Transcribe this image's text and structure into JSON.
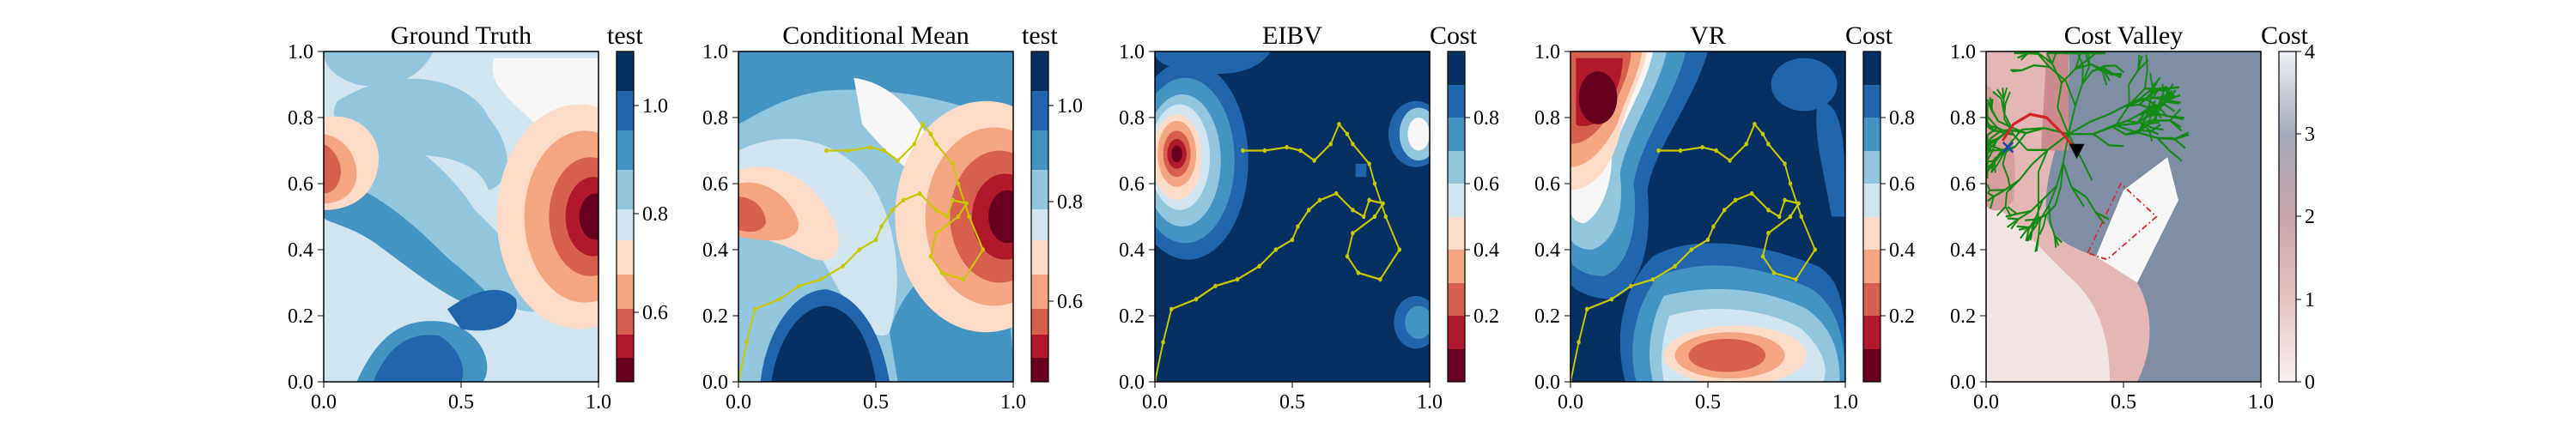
{
  "colors": {
    "dark_red": "#67001f",
    "red": "#b2182b",
    "salmon": "#d6604d",
    "light_salmon": "#f4a582",
    "peach": "#fddbc7",
    "near_white": "#f7f7f7",
    "pale_blue": "#d1e5f0",
    "light_blue": "#92c5de",
    "mid_blue": "#4393c3",
    "blue": "#2166ac",
    "dark_blue": "#053061",
    "path_yellow": "#c8c800",
    "tree_green": "#138a13",
    "route_red": "#d62728",
    "cost_low": "#f3e4e4",
    "cost_mid": "#ddaaaa",
    "cost_high": "#7f8ea4"
  },
  "chart_data": [
    {
      "type": "heatmap",
      "title": "Ground Truth",
      "colorbar_label": "test",
      "colorbar_ticks": [
        "0.6",
        "0.8",
        "1.0"
      ],
      "xlim": [
        0,
        1
      ],
      "ylim": [
        0,
        1
      ],
      "xticks": [
        "0.0",
        "0.5",
        "1.0"
      ],
      "yticks": [
        "0.0",
        "0.2",
        "0.4",
        "0.6",
        "0.8",
        "1.0"
      ]
    },
    {
      "type": "heatmap",
      "title": "Conditional Mean",
      "colorbar_label": "test",
      "colorbar_ticks": [
        "0.6",
        "0.8",
        "1.0"
      ],
      "xlim": [
        0,
        1
      ],
      "ylim": [
        0,
        1
      ],
      "xticks": [
        "0.0",
        "0.5",
        "1.0"
      ],
      "yticks": [
        "0.0",
        "0.2",
        "0.4",
        "0.6",
        "0.8",
        "1.0"
      ],
      "path": [
        [
          0.0,
          0.0
        ],
        [
          0.03,
          0.12
        ],
        [
          0.06,
          0.22
        ],
        [
          0.15,
          0.25
        ],
        [
          0.22,
          0.29
        ],
        [
          0.3,
          0.31
        ],
        [
          0.38,
          0.35
        ],
        [
          0.44,
          0.4
        ],
        [
          0.5,
          0.43
        ],
        [
          0.52,
          0.47
        ],
        [
          0.56,
          0.52
        ],
        [
          0.6,
          0.55
        ],
        [
          0.66,
          0.57
        ],
        [
          0.72,
          0.52
        ],
        [
          0.76,
          0.5
        ],
        [
          0.78,
          0.55
        ],
        [
          0.83,
          0.54
        ],
        [
          0.8,
          0.5
        ],
        [
          0.72,
          0.45
        ],
        [
          0.7,
          0.38
        ],
        [
          0.74,
          0.33
        ],
        [
          0.82,
          0.31
        ],
        [
          0.89,
          0.4
        ],
        [
          0.84,
          0.5
        ],
        [
          0.8,
          0.6
        ],
        [
          0.78,
          0.66
        ],
        [
          0.72,
          0.72
        ],
        [
          0.7,
          0.75
        ],
        [
          0.67,
          0.78
        ],
        [
          0.64,
          0.72
        ],
        [
          0.58,
          0.67
        ],
        [
          0.53,
          0.7
        ],
        [
          0.48,
          0.71
        ],
        [
          0.4,
          0.7
        ],
        [
          0.32,
          0.7
        ]
      ]
    },
    {
      "type": "heatmap",
      "title": "EIBV",
      "colorbar_label": "Cost",
      "colorbar_ticks": [
        "0.2",
        "0.4",
        "0.6",
        "0.8"
      ],
      "xlim": [
        0,
        1
      ],
      "ylim": [
        0,
        1
      ],
      "xticks": [
        "0.0",
        "0.5",
        "1.0"
      ],
      "yticks": [
        "0.0",
        "0.2",
        "0.4",
        "0.6",
        "0.8",
        "1.0"
      ],
      "path": [
        [
          0.0,
          0.0
        ],
        [
          0.03,
          0.12
        ],
        [
          0.06,
          0.22
        ],
        [
          0.15,
          0.25
        ],
        [
          0.22,
          0.29
        ],
        [
          0.3,
          0.31
        ],
        [
          0.38,
          0.35
        ],
        [
          0.44,
          0.4
        ],
        [
          0.5,
          0.43
        ],
        [
          0.52,
          0.47
        ],
        [
          0.56,
          0.52
        ],
        [
          0.6,
          0.55
        ],
        [
          0.66,
          0.57
        ],
        [
          0.72,
          0.52
        ],
        [
          0.76,
          0.5
        ],
        [
          0.78,
          0.55
        ],
        [
          0.83,
          0.54
        ],
        [
          0.8,
          0.5
        ],
        [
          0.72,
          0.45
        ],
        [
          0.7,
          0.38
        ],
        [
          0.74,
          0.33
        ],
        [
          0.82,
          0.31
        ],
        [
          0.89,
          0.4
        ],
        [
          0.84,
          0.5
        ],
        [
          0.8,
          0.6
        ],
        [
          0.78,
          0.66
        ],
        [
          0.72,
          0.72
        ],
        [
          0.7,
          0.75
        ],
        [
          0.67,
          0.78
        ],
        [
          0.64,
          0.72
        ],
        [
          0.58,
          0.67
        ],
        [
          0.53,
          0.7
        ],
        [
          0.48,
          0.71
        ],
        [
          0.4,
          0.7
        ],
        [
          0.32,
          0.7
        ]
      ]
    },
    {
      "type": "heatmap",
      "title": "VR",
      "colorbar_label": "Cost",
      "colorbar_ticks": [
        "0.2",
        "0.4",
        "0.6",
        "0.8"
      ],
      "xlim": [
        0,
        1
      ],
      "ylim": [
        0,
        1
      ],
      "xticks": [
        "0.0",
        "0.5",
        "1.0"
      ],
      "yticks": [
        "0.0",
        "0.2",
        "0.4",
        "0.6",
        "0.8",
        "1.0"
      ],
      "path": [
        [
          0.0,
          0.0
        ],
        [
          0.03,
          0.12
        ],
        [
          0.06,
          0.22
        ],
        [
          0.15,
          0.25
        ],
        [
          0.22,
          0.29
        ],
        [
          0.3,
          0.31
        ],
        [
          0.38,
          0.35
        ],
        [
          0.44,
          0.4
        ],
        [
          0.5,
          0.43
        ],
        [
          0.52,
          0.47
        ],
        [
          0.56,
          0.52
        ],
        [
          0.6,
          0.55
        ],
        [
          0.66,
          0.57
        ],
        [
          0.72,
          0.52
        ],
        [
          0.76,
          0.5
        ],
        [
          0.78,
          0.55
        ],
        [
          0.83,
          0.54
        ],
        [
          0.8,
          0.5
        ],
        [
          0.72,
          0.45
        ],
        [
          0.7,
          0.38
        ],
        [
          0.74,
          0.33
        ],
        [
          0.82,
          0.31
        ],
        [
          0.89,
          0.4
        ],
        [
          0.84,
          0.5
        ],
        [
          0.8,
          0.6
        ],
        [
          0.78,
          0.66
        ],
        [
          0.72,
          0.72
        ],
        [
          0.7,
          0.75
        ],
        [
          0.67,
          0.78
        ],
        [
          0.64,
          0.72
        ],
        [
          0.58,
          0.67
        ],
        [
          0.53,
          0.7
        ],
        [
          0.48,
          0.71
        ],
        [
          0.4,
          0.7
        ],
        [
          0.32,
          0.7
        ]
      ]
    },
    {
      "type": "heatmap",
      "title": "Cost Valley",
      "colorbar_label": "Cost",
      "colorbar_ticks": [
        "0",
        "1",
        "2",
        "3",
        "4"
      ],
      "xlim": [
        0,
        1
      ],
      "ylim": [
        0,
        1
      ],
      "xticks": [
        "0.0",
        "0.5",
        "1.0"
      ],
      "yticks": [
        "0.0",
        "0.2",
        "0.4",
        "0.6",
        "0.8",
        "1.0"
      ],
      "route": [
        [
          0.06,
          0.73
        ],
        [
          0.1,
          0.78
        ],
        [
          0.16,
          0.81
        ],
        [
          0.22,
          0.8
        ],
        [
          0.28,
          0.75
        ],
        [
          0.33,
          0.7
        ]
      ],
      "current_location": [
        0.33,
        0.7
      ],
      "start_marker": [
        0.08,
        0.71
      ],
      "obstacle": [
        [
          0.37,
          0.39
        ],
        [
          0.49,
          0.6
        ],
        [
          0.62,
          0.5
        ],
        [
          0.44,
          0.37
        ]
      ]
    }
  ]
}
